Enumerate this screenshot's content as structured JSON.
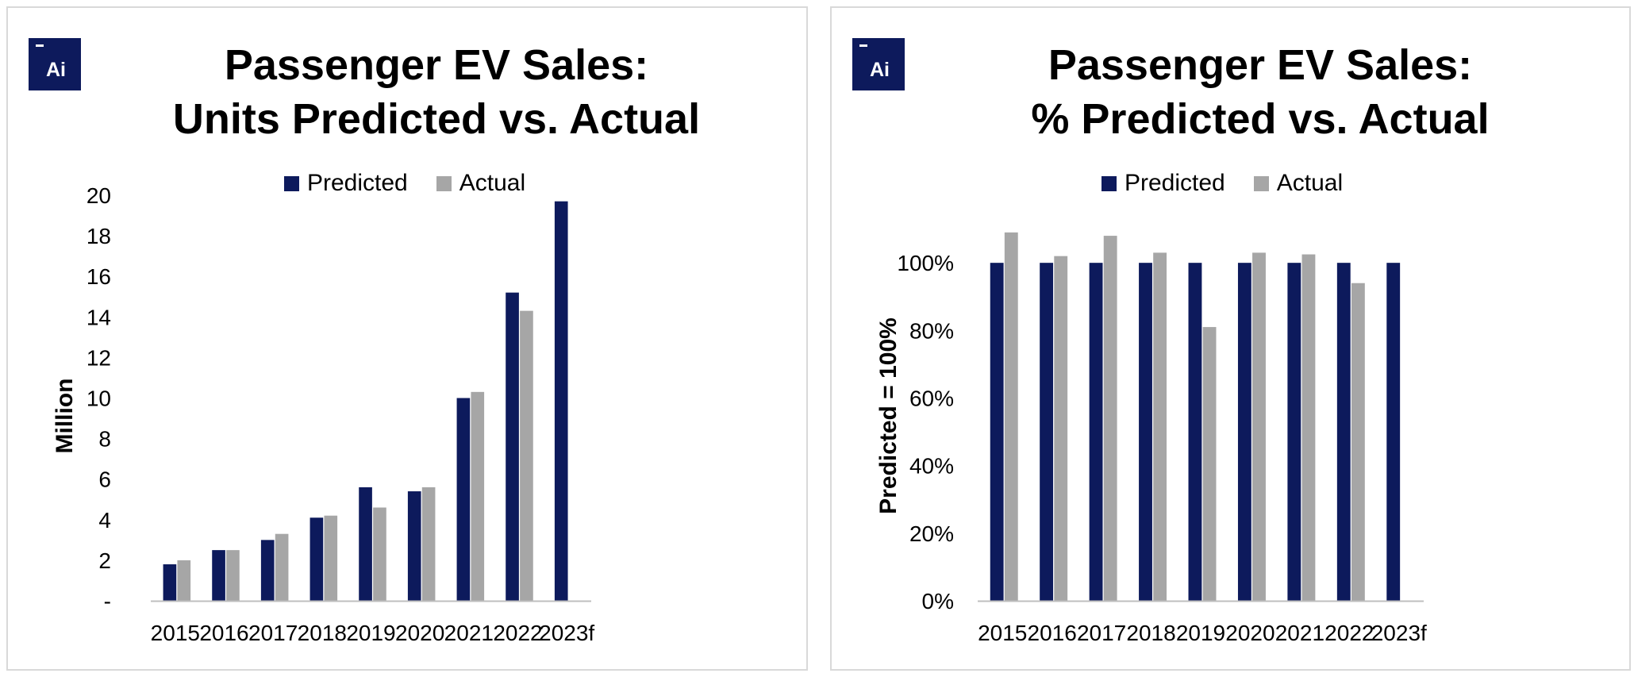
{
  "panels": [
    {
      "title_line1": "Passenger EV Sales:",
      "title_line2": "Units Predicted vs. Actual",
      "logo_text": "Ai",
      "ylabel": "Million",
      "legend": [
        "Predicted",
        "Actual"
      ]
    },
    {
      "title_line1": "Passenger EV Sales:",
      "title_line2": "% Predicted vs. Actual",
      "logo_text": "Ai",
      "ylabel": "Predicted = 100%",
      "legend": [
        "Predicted",
        "Actual"
      ]
    }
  ],
  "colors": {
    "predicted": "#0d1a5c",
    "actual": "#a6a6a6",
    "axis": "#bfbfbf",
    "logo": "#0d1a5c"
  },
  "chart_data": [
    {
      "type": "bar",
      "title": "Passenger EV Sales: Units Predicted vs. Actual",
      "xlabel": "",
      "ylabel": "Million",
      "categories": [
        "2015",
        "2016",
        "2017",
        "2018",
        "2019",
        "2020",
        "2021",
        "2022",
        "2023f"
      ],
      "series": [
        {
          "name": "Predicted",
          "values": [
            1.8,
            2.5,
            3.0,
            4.1,
            5.6,
            5.4,
            10.0,
            15.2,
            19.7
          ]
        },
        {
          "name": "Actual",
          "values": [
            2.0,
            2.5,
            3.3,
            4.2,
            4.6,
            5.6,
            10.3,
            14.3,
            null
          ]
        }
      ],
      "ylim": [
        0,
        20
      ],
      "yticks": [
        "-",
        "2",
        "4",
        "6",
        "8",
        "10",
        "12",
        "14",
        "16",
        "18",
        "20"
      ],
      "legend_position": "top-center",
      "grid": false
    },
    {
      "type": "bar",
      "title": "Passenger EV Sales: % Predicted vs. Actual",
      "xlabel": "",
      "ylabel": "Predicted = 100%",
      "categories": [
        "2015",
        "2016",
        "2017",
        "2018",
        "2019",
        "2020",
        "2021",
        "2022",
        "2023f"
      ],
      "series": [
        {
          "name": "Predicted",
          "values": [
            100,
            100,
            100,
            100,
            100,
            100,
            100,
            100,
            100
          ]
        },
        {
          "name": "Actual",
          "values": [
            109,
            102,
            108,
            103,
            81,
            103,
            102.5,
            94,
            null
          ]
        }
      ],
      "ylim": [
        0,
        120
      ],
      "yticks": [
        "0%",
        "20%",
        "40%",
        "60%",
        "80%",
        "100%"
      ],
      "legend_position": "top-center",
      "grid": false
    }
  ]
}
